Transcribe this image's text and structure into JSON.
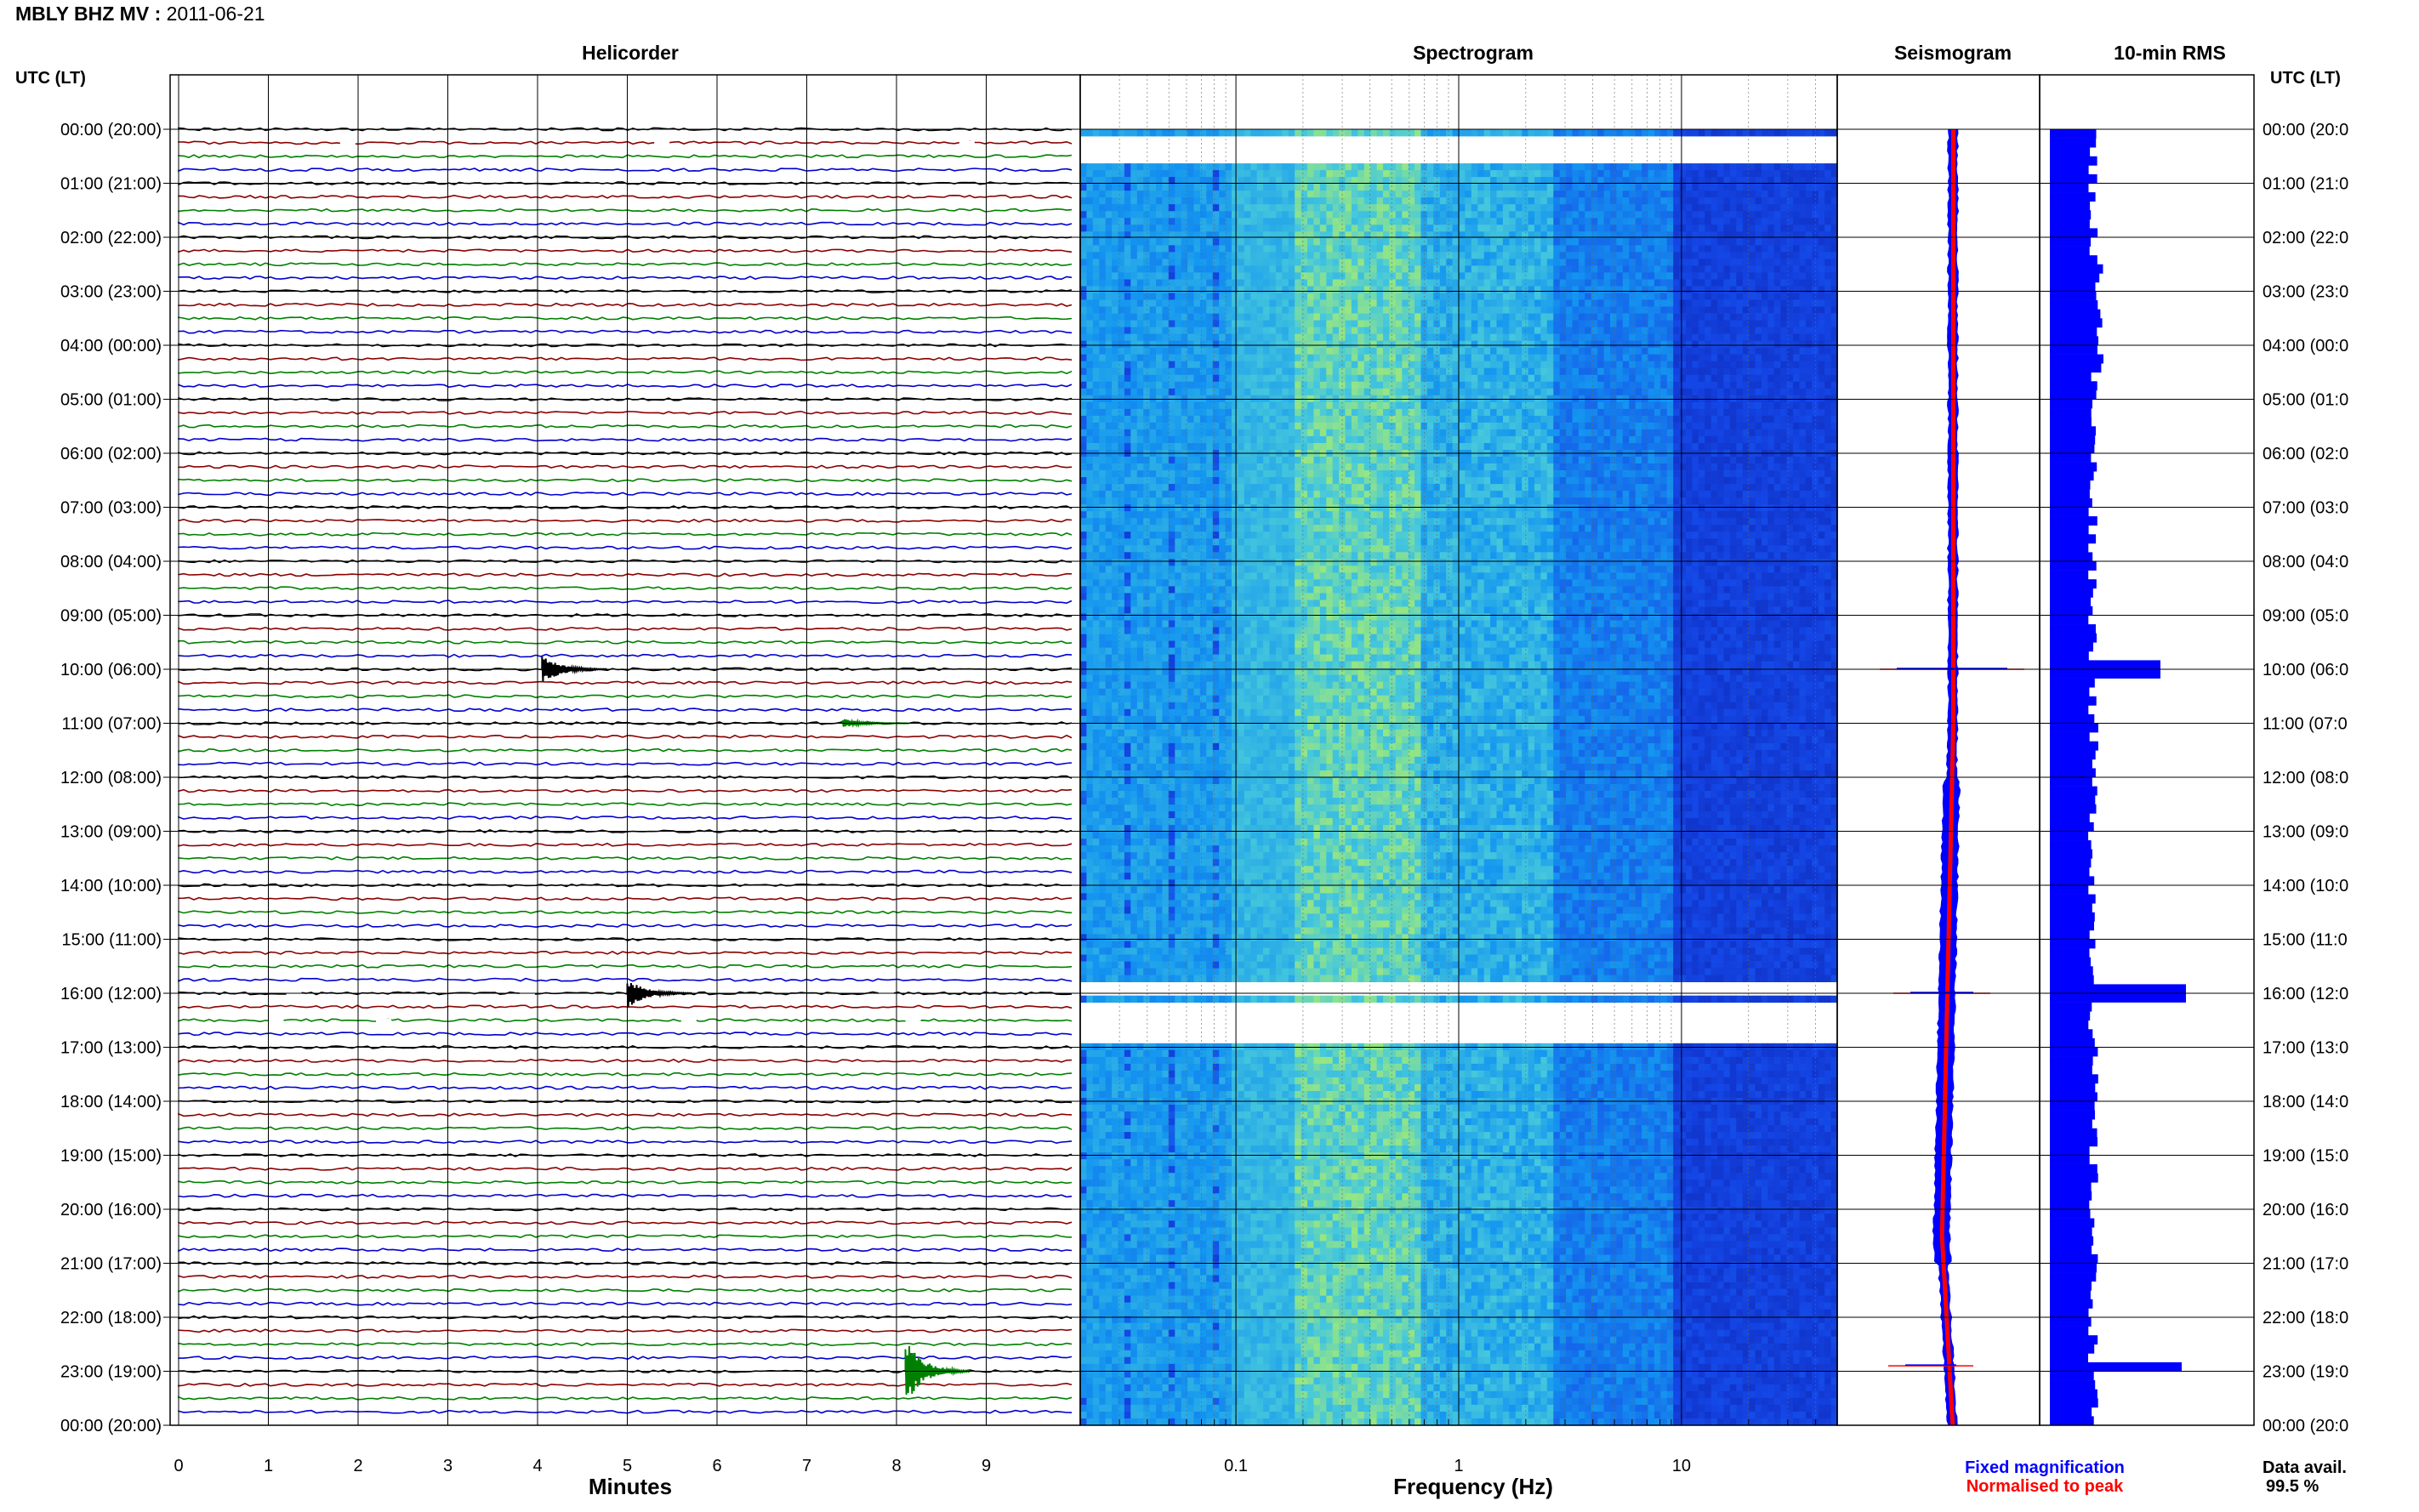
{
  "header": {
    "station": "MBLY BHZ MV",
    "sep": " : ",
    "date": "2011-06-21"
  },
  "panels": {
    "helicorder": "Helicorder",
    "spectrogram": "Spectrogram",
    "seismogram": "Seismogram",
    "rms": "10-min RMS"
  },
  "axis_left_title": "UTC (LT)",
  "axis_right_title": "UTC (LT)",
  "time_labels": [
    "00:00 (20:00)",
    "01:00 (21:00)",
    "02:00 (22:00)",
    "03:00 (23:00)",
    "04:00 (00:00)",
    "05:00 (01:00)",
    "06:00 (02:00)",
    "07:00 (03:00)",
    "08:00 (04:00)",
    "09:00 (05:00)",
    "10:00 (06:00)",
    "11:00 (07:00)",
    "12:00 (08:00)",
    "13:00 (09:00)",
    "14:00 (10:00)",
    "15:00 (11:00)",
    "16:00 (12:00)",
    "17:00 (13:00)",
    "18:00 (14:00)",
    "19:00 (15:00)",
    "20:00 (16:00)",
    "21:00 (17:00)",
    "22:00 (18:00)",
    "23:00 (19:00)",
    "00:00 (20:00)"
  ],
  "time_labels_right": [
    "00:00 (20:0",
    "01:00 (21:0",
    "02:00 (22:0",
    "03:00 (23:0",
    "04:00 (00:0",
    "05:00 (01:0",
    "06:00 (02:0",
    "07:00 (03:0",
    "08:00 (04:0",
    "09:00 (05:0",
    "10:00 (06:0",
    "11:00 (07:0",
    "12:00 (08:0",
    "13:00 (09:0",
    "14:00 (10:0",
    "15:00 (11:0",
    "16:00 (12:0",
    "17:00 (13:0",
    "18:00 (14:0",
    "19:00 (15:0",
    "20:00 (16:0",
    "21:00 (17:0",
    "22:00 (18:0",
    "23:00 (19:0",
    "00:00 (20:0"
  ],
  "helicorder": {
    "xlabel": "Minutes",
    "ticks": [
      "0",
      "1",
      "2",
      "3",
      "4",
      "5",
      "6",
      "7",
      "8",
      "9"
    ],
    "trace_colors": [
      "#000000",
      "#8b0000",
      "#008000",
      "#0000cd"
    ],
    "events": [
      {
        "hour": 10.0,
        "minute": 4.05,
        "amplitude": 1.0,
        "color": "#000000"
      },
      {
        "hour": 16.0,
        "minute": 5.0,
        "amplitude": 1.0,
        "color": "#000000"
      },
      {
        "hour": 11.0,
        "minute": 7.4,
        "amplitude": 0.3,
        "color": "#008000"
      },
      {
        "hour": 23.0,
        "minute": 8.1,
        "amplitude": 2.2,
        "color": "#008000"
      }
    ]
  },
  "spectrogram": {
    "xlabel": "Frequency (Hz)",
    "ticks": [
      {
        "value": 0.1,
        "label": "0.1"
      },
      {
        "value": 1,
        "label": "1"
      },
      {
        "value": 10,
        "label": "10"
      }
    ],
    "xlim": [
      0.02,
      50
    ],
    "gap_hours": [
      [
        0.15,
        0.65
      ],
      [
        15.8,
        16.05
      ],
      [
        16.2,
        16.9
      ]
    ]
  },
  "seismogram_legend": {
    "fixed": "Fixed magnification",
    "normalised": "Normalised to peak",
    "fixed_color": "#0000ff",
    "normalised_color": "#ff0000"
  },
  "rms": {
    "peak_hours": [
      {
        "hour": 10.0,
        "value": 0.7
      },
      {
        "hour": 16.0,
        "value": 1.0
      },
      {
        "hour": 22.9,
        "value": 0.95
      }
    ]
  },
  "data_avail": {
    "label": "Data avail.",
    "value": "99.5 %"
  },
  "chart_data": {
    "type": "heatmap",
    "title": "MBLY BHZ MV : 2011-06-21",
    "panels": [
      "Helicorder",
      "Spectrogram",
      "Seismogram",
      "10-min RMS"
    ],
    "y_axis": "UTC (LT)",
    "helicorder_xlabel": "Minutes",
    "spectrogram_xlabel": "Frequency (Hz)",
    "data_availability_percent": 99.5
  }
}
